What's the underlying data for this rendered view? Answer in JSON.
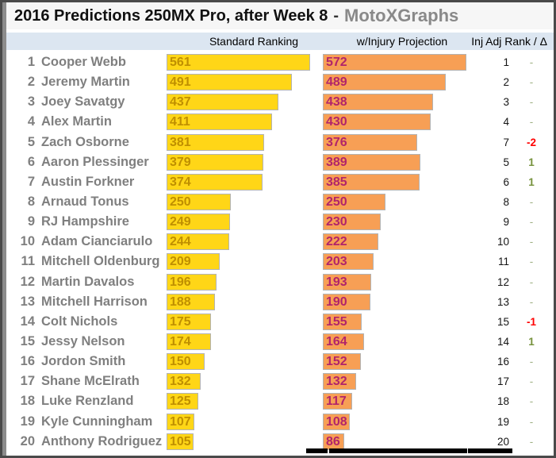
{
  "title": {
    "main": "2016 Predictions 250MX Pro, after Week 8",
    "separator": "-",
    "brand": "MotoXGraphs"
  },
  "header": {
    "col_standard": "Standard Ranking",
    "col_injury": "w/Injury Projection",
    "col_rank": "Inj Adj Rank / Δ"
  },
  "colors": {
    "standard_bar": "#ffd617",
    "standard_label": "#bf8f00",
    "injury_bar": "#f79f55",
    "injury_label": "#b1246a",
    "name_text": "#7f7f7f",
    "header_band": "#dce6f1",
    "delta_negative": "#ff0000",
    "delta_positive": "#76923c",
    "delta_dash": "#9fb083"
  },
  "chart_data": {
    "type": "bar",
    "orientation": "horizontal",
    "title": "2016 Predictions 250MX Pro, after Week 8 - MotoXGraphs",
    "legend_position": "top",
    "grid": false,
    "categories": [
      "Cooper Webb",
      "Jeremy Martin",
      "Joey Savatgy",
      "Alex Martin",
      "Zach Osborne",
      "Aaron Plessinger",
      "Austin Forkner",
      "Arnaud Tonus",
      "RJ Hampshire",
      "Adam Cianciarulo",
      "Mitchell Oldenburg",
      "Martin Davalos",
      "Mitchell Harrison",
      "Colt Nichols",
      "Jessy Nelson",
      "Jordon Smith",
      "Shane McElrath",
      "Luke Renzland",
      "Kyle Cunningham",
      "Anthony Rodriguez"
    ],
    "standard_rank": [
      1,
      2,
      3,
      4,
      5,
      6,
      7,
      8,
      9,
      10,
      11,
      12,
      13,
      14,
      15,
      16,
      17,
      18,
      19,
      20
    ],
    "series": [
      {
        "name": "Standard Ranking",
        "values": [
          561,
          491,
          437,
          411,
          381,
          379,
          374,
          250,
          249,
          244,
          209,
          196,
          188,
          175,
          174,
          150,
          132,
          125,
          107,
          105
        ],
        "axis_max": 561
      },
      {
        "name": "w/Injury Projection",
        "values": [
          572,
          489,
          438,
          430,
          376,
          389,
          385,
          250,
          230,
          222,
          203,
          193,
          190,
          155,
          164,
          152,
          132,
          117,
          108,
          86
        ],
        "axis_max": 572
      }
    ],
    "inj_adj_rank": [
      1,
      2,
      3,
      4,
      7,
      5,
      6,
      8,
      9,
      10,
      11,
      12,
      13,
      15,
      14,
      16,
      17,
      18,
      19,
      20
    ],
    "delta": [
      "-",
      "-",
      "-",
      "-",
      "-2",
      "1",
      "1",
      "-",
      "-",
      "-",
      "-",
      "-",
      "-",
      "-1",
      "1",
      "-",
      "-",
      "-",
      "-",
      "-"
    ]
  }
}
